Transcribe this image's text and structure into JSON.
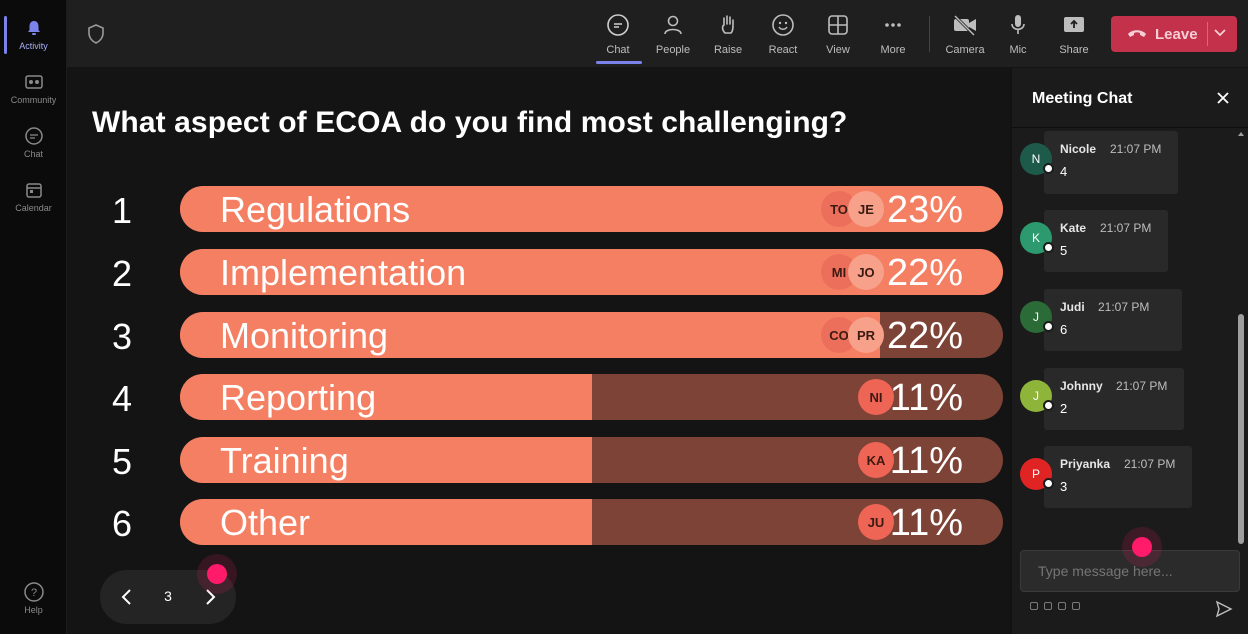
{
  "rail": {
    "items": [
      {
        "label": "Activity",
        "icon": "bell-icon",
        "active": true
      },
      {
        "label": "Community",
        "icon": "community-icon",
        "active": false
      },
      {
        "label": "Chat",
        "icon": "chat-icon",
        "active": false
      },
      {
        "label": "Calendar",
        "icon": "calendar-icon",
        "active": false
      }
    ],
    "help": "Help"
  },
  "toolbar": {
    "chat": "Chat",
    "people": "People",
    "raise": "Raise",
    "react": "React",
    "view": "View",
    "more": "More",
    "camera": "Camera",
    "mic": "Mic",
    "share": "Share",
    "leave": "Leave"
  },
  "poll": {
    "question": "What aspect of ECOA do you find most challenging?",
    "options": [
      {
        "num": "1",
        "label": "Regulations",
        "pct": "23%",
        "fill": 1.0,
        "avatars": [
          "TO",
          "JE"
        ]
      },
      {
        "num": "2",
        "label": "Implementation",
        "pct": "22%",
        "fill": 1.0,
        "avatars": [
          "MI",
          "JO"
        ]
      },
      {
        "num": "3",
        "label": "Monitoring",
        "pct": "22%",
        "fill": 0.85,
        "avatars": [
          "CO",
          "PR"
        ]
      },
      {
        "num": "4",
        "label": "Reporting",
        "pct": "11%",
        "fill": 0.5,
        "avatars": [
          "NI"
        ]
      },
      {
        "num": "5",
        "label": "Training",
        "pct": "11%",
        "fill": 0.5,
        "avatars": [
          "KA"
        ]
      },
      {
        "num": "6",
        "label": "Other",
        "pct": "11%",
        "fill": 0.5,
        "avatars": [
          "JU"
        ]
      }
    ],
    "page": "3"
  },
  "chat": {
    "title": "Meeting Chat",
    "messages": [
      {
        "initial": "N",
        "name": "Nicole",
        "time": "21:07 PM",
        "text": "4",
        "color": "#1e5a4a"
      },
      {
        "initial": "K",
        "name": "Kate",
        "time": "21:07 PM",
        "text": "5",
        "color": "#2c9a6e"
      },
      {
        "initial": "J",
        "name": "Judi",
        "time": "21:07 PM",
        "text": "6",
        "color": "#2a6b37"
      },
      {
        "initial": "J",
        "name": "Johnny",
        "time": "21:07 PM",
        "text": "2",
        "color": "#8fb43a"
      },
      {
        "initial": "P",
        "name": "Priyanka",
        "time": "21:07 PM",
        "text": "3",
        "color": "#e02424"
      }
    ],
    "input_placeholder": "Type message here..."
  },
  "colors": {
    "bar_fill": "#f47f62",
    "bar_track": "#7d4336",
    "leave": "#c4314b",
    "accent": "#7b83eb",
    "pointer": "#ff1a6a"
  }
}
